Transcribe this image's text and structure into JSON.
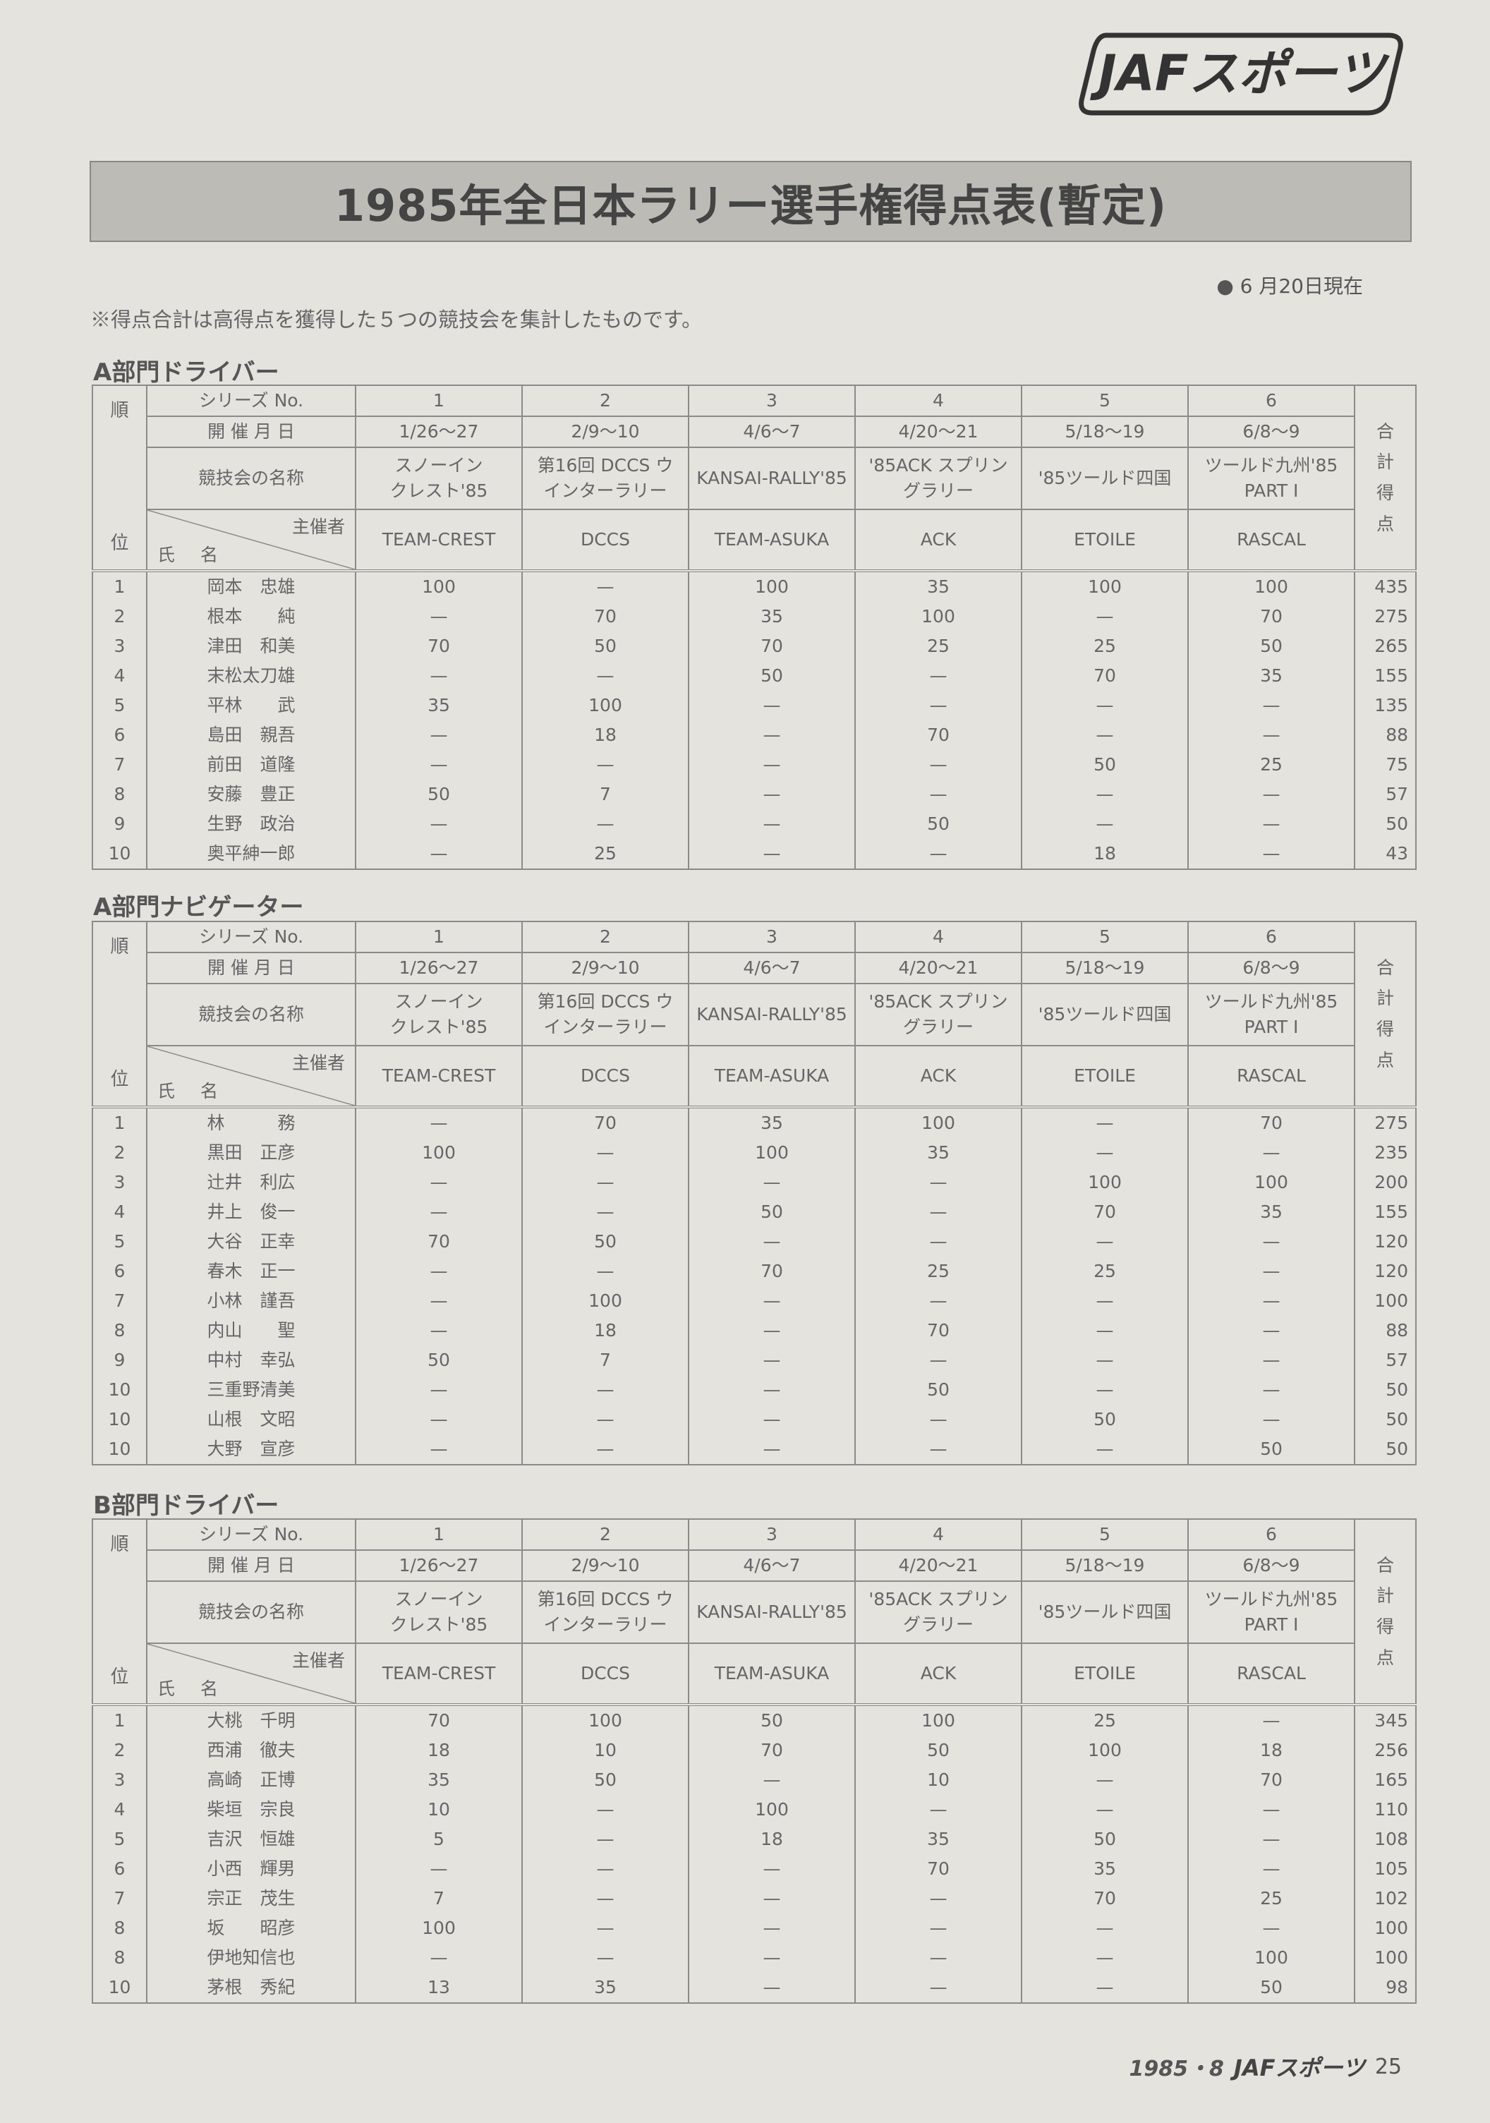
{
  "logo_text": "JAFスポーツ",
  "title": "1985年全日本ラリー選手権得点表(暫定)",
  "as_of": "● 6 月20日現在",
  "note": "※得点合計は高得点を獲得した５つの競技会を集計したものです。",
  "header": {
    "series_label": "シリーズ No.",
    "date_label": "開 催 月 日",
    "event_label": "競技会の名称",
    "organizer_label": "主催者",
    "name_label": "氏 名",
    "rank_label": [
      "順",
      "位"
    ],
    "total_label": [
      "合",
      "計",
      "得",
      "点"
    ],
    "series": [
      "1",
      "2",
      "3",
      "4",
      "5",
      "6"
    ],
    "dates": [
      "1/26〜27",
      "2/9〜10",
      "4/6〜7",
      "4/20〜21",
      "5/18〜19",
      "6/8〜9"
    ],
    "events": [
      [
        "スノーイン",
        "クレスト'85"
      ],
      [
        "第16回 DCCS ウ",
        "インターラリー"
      ],
      [
        "KANSAI-RALLY'85"
      ],
      [
        "'85ACK スプリン",
        "グラリー"
      ],
      [
        "'85ツールド四国"
      ],
      [
        "ツールド九州'85",
        "PART Ⅰ"
      ]
    ],
    "organizers": [
      "TEAM-CREST",
      "DCCS",
      "TEAM-ASUKA",
      "ACK",
      "ETOILE",
      "RASCAL"
    ]
  },
  "sections": [
    {
      "title": "A部門ドライバー",
      "rows": [
        {
          "rank": "1",
          "name": "岡本　忠雄",
          "scores": [
            "100",
            "—",
            "100",
            "35",
            "100",
            "100"
          ],
          "total": "435"
        },
        {
          "rank": "2",
          "name": "根本　　純",
          "scores": [
            "—",
            "70",
            "35",
            "100",
            "—",
            "70"
          ],
          "total": "275"
        },
        {
          "rank": "3",
          "name": "津田　和美",
          "scores": [
            "70",
            "50",
            "70",
            "25",
            "25",
            "50"
          ],
          "total": "265"
        },
        {
          "rank": "4",
          "name": "末松太刀雄",
          "scores": [
            "—",
            "—",
            "50",
            "—",
            "70",
            "35"
          ],
          "total": "155"
        },
        {
          "rank": "5",
          "name": "平林　　武",
          "scores": [
            "35",
            "100",
            "—",
            "—",
            "—",
            "—"
          ],
          "total": "135"
        },
        {
          "rank": "6",
          "name": "島田　親吾",
          "scores": [
            "—",
            "18",
            "—",
            "70",
            "—",
            "—"
          ],
          "total": "88"
        },
        {
          "rank": "7",
          "name": "前田　道隆",
          "scores": [
            "—",
            "—",
            "—",
            "—",
            "50",
            "25"
          ],
          "total": "75"
        },
        {
          "rank": "8",
          "name": "安藤　豊正",
          "scores": [
            "50",
            "7",
            "—",
            "—",
            "—",
            "—"
          ],
          "total": "57"
        },
        {
          "rank": "9",
          "name": "生野　政治",
          "scores": [
            "—",
            "—",
            "—",
            "50",
            "—",
            "—"
          ],
          "total": "50"
        },
        {
          "rank": "10",
          "name": "奥平紳一郎",
          "scores": [
            "—",
            "25",
            "—",
            "—",
            "18",
            "—"
          ],
          "total": "43"
        }
      ]
    },
    {
      "title": "A部門ナビゲーター",
      "rows": [
        {
          "rank": "1",
          "name": "林　　　務",
          "scores": [
            "—",
            "70",
            "35",
            "100",
            "—",
            "70"
          ],
          "total": "275"
        },
        {
          "rank": "2",
          "name": "黒田　正彦",
          "scores": [
            "100",
            "—",
            "100",
            "35",
            "—",
            "—"
          ],
          "total": "235"
        },
        {
          "rank": "3",
          "name": "辻井　利広",
          "scores": [
            "—",
            "—",
            "—",
            "—",
            "100",
            "100"
          ],
          "total": "200"
        },
        {
          "rank": "4",
          "name": "井上　俊一",
          "scores": [
            "—",
            "—",
            "50",
            "—",
            "70",
            "35"
          ],
          "total": "155"
        },
        {
          "rank": "5",
          "name": "大谷　正幸",
          "scores": [
            "70",
            "50",
            "—",
            "—",
            "—",
            "—"
          ],
          "total": "120"
        },
        {
          "rank": "6",
          "name": "春木　正一",
          "scores": [
            "—",
            "—",
            "70",
            "25",
            "25",
            "—"
          ],
          "total": "120"
        },
        {
          "rank": "7",
          "name": "小林　謹吾",
          "scores": [
            "—",
            "100",
            "—",
            "—",
            "—",
            "—"
          ],
          "total": "100"
        },
        {
          "rank": "8",
          "name": "内山　　聖",
          "scores": [
            "—",
            "18",
            "—",
            "70",
            "—",
            "—"
          ],
          "total": "88"
        },
        {
          "rank": "9",
          "name": "中村　幸弘",
          "scores": [
            "50",
            "7",
            "—",
            "—",
            "—",
            "—"
          ],
          "total": "57"
        },
        {
          "rank": "10",
          "name": "三重野清美",
          "scores": [
            "—",
            "—",
            "—",
            "50",
            "—",
            "—"
          ],
          "total": "50"
        },
        {
          "rank": "10",
          "name": "山根　文昭",
          "scores": [
            "—",
            "—",
            "—",
            "—",
            "50",
            "—"
          ],
          "total": "50"
        },
        {
          "rank": "10",
          "name": "大野　宣彦",
          "scores": [
            "—",
            "—",
            "—",
            "—",
            "—",
            "50"
          ],
          "total": "50"
        }
      ]
    },
    {
      "title": "B部門ドライバー",
      "rows": [
        {
          "rank": "1",
          "name": "大桃　千明",
          "scores": [
            "70",
            "100",
            "50",
            "100",
            "25",
            "—"
          ],
          "total": "345"
        },
        {
          "rank": "2",
          "name": "西浦　徹夫",
          "scores": [
            "18",
            "10",
            "70",
            "50",
            "100",
            "18"
          ],
          "total": "256"
        },
        {
          "rank": "3",
          "name": "高崎　正博",
          "scores": [
            "35",
            "50",
            "—",
            "10",
            "—",
            "70"
          ],
          "total": "165"
        },
        {
          "rank": "4",
          "name": "柴垣　宗良",
          "scores": [
            "10",
            "—",
            "100",
            "—",
            "—",
            "—"
          ],
          "total": "110"
        },
        {
          "rank": "5",
          "name": "吉沢　恒雄",
          "scores": [
            "5",
            "—",
            "18",
            "35",
            "50",
            "—"
          ],
          "total": "108"
        },
        {
          "rank": "6",
          "name": "小西　輝男",
          "scores": [
            "—",
            "—",
            "—",
            "70",
            "35",
            "—"
          ],
          "total": "105"
        },
        {
          "rank": "7",
          "name": "宗正　茂生",
          "scores": [
            "7",
            "—",
            "—",
            "—",
            "70",
            "25"
          ],
          "total": "102"
        },
        {
          "rank": "8",
          "name": "坂　　昭彦",
          "scores": [
            "100",
            "—",
            "—",
            "—",
            "—",
            "—"
          ],
          "total": "100"
        },
        {
          "rank": "8",
          "name": "伊地知信也",
          "scores": [
            "—",
            "—",
            "—",
            "—",
            "—",
            "100"
          ],
          "total": "100"
        },
        {
          "rank": "10",
          "name": "茅根　秀紀",
          "scores": [
            "13",
            "35",
            "—",
            "—",
            "—",
            "50"
          ],
          "total": "98"
        }
      ]
    }
  ],
  "footer": {
    "issue": "1985・8",
    "brand": "JAFスポーツ",
    "page": "25"
  }
}
